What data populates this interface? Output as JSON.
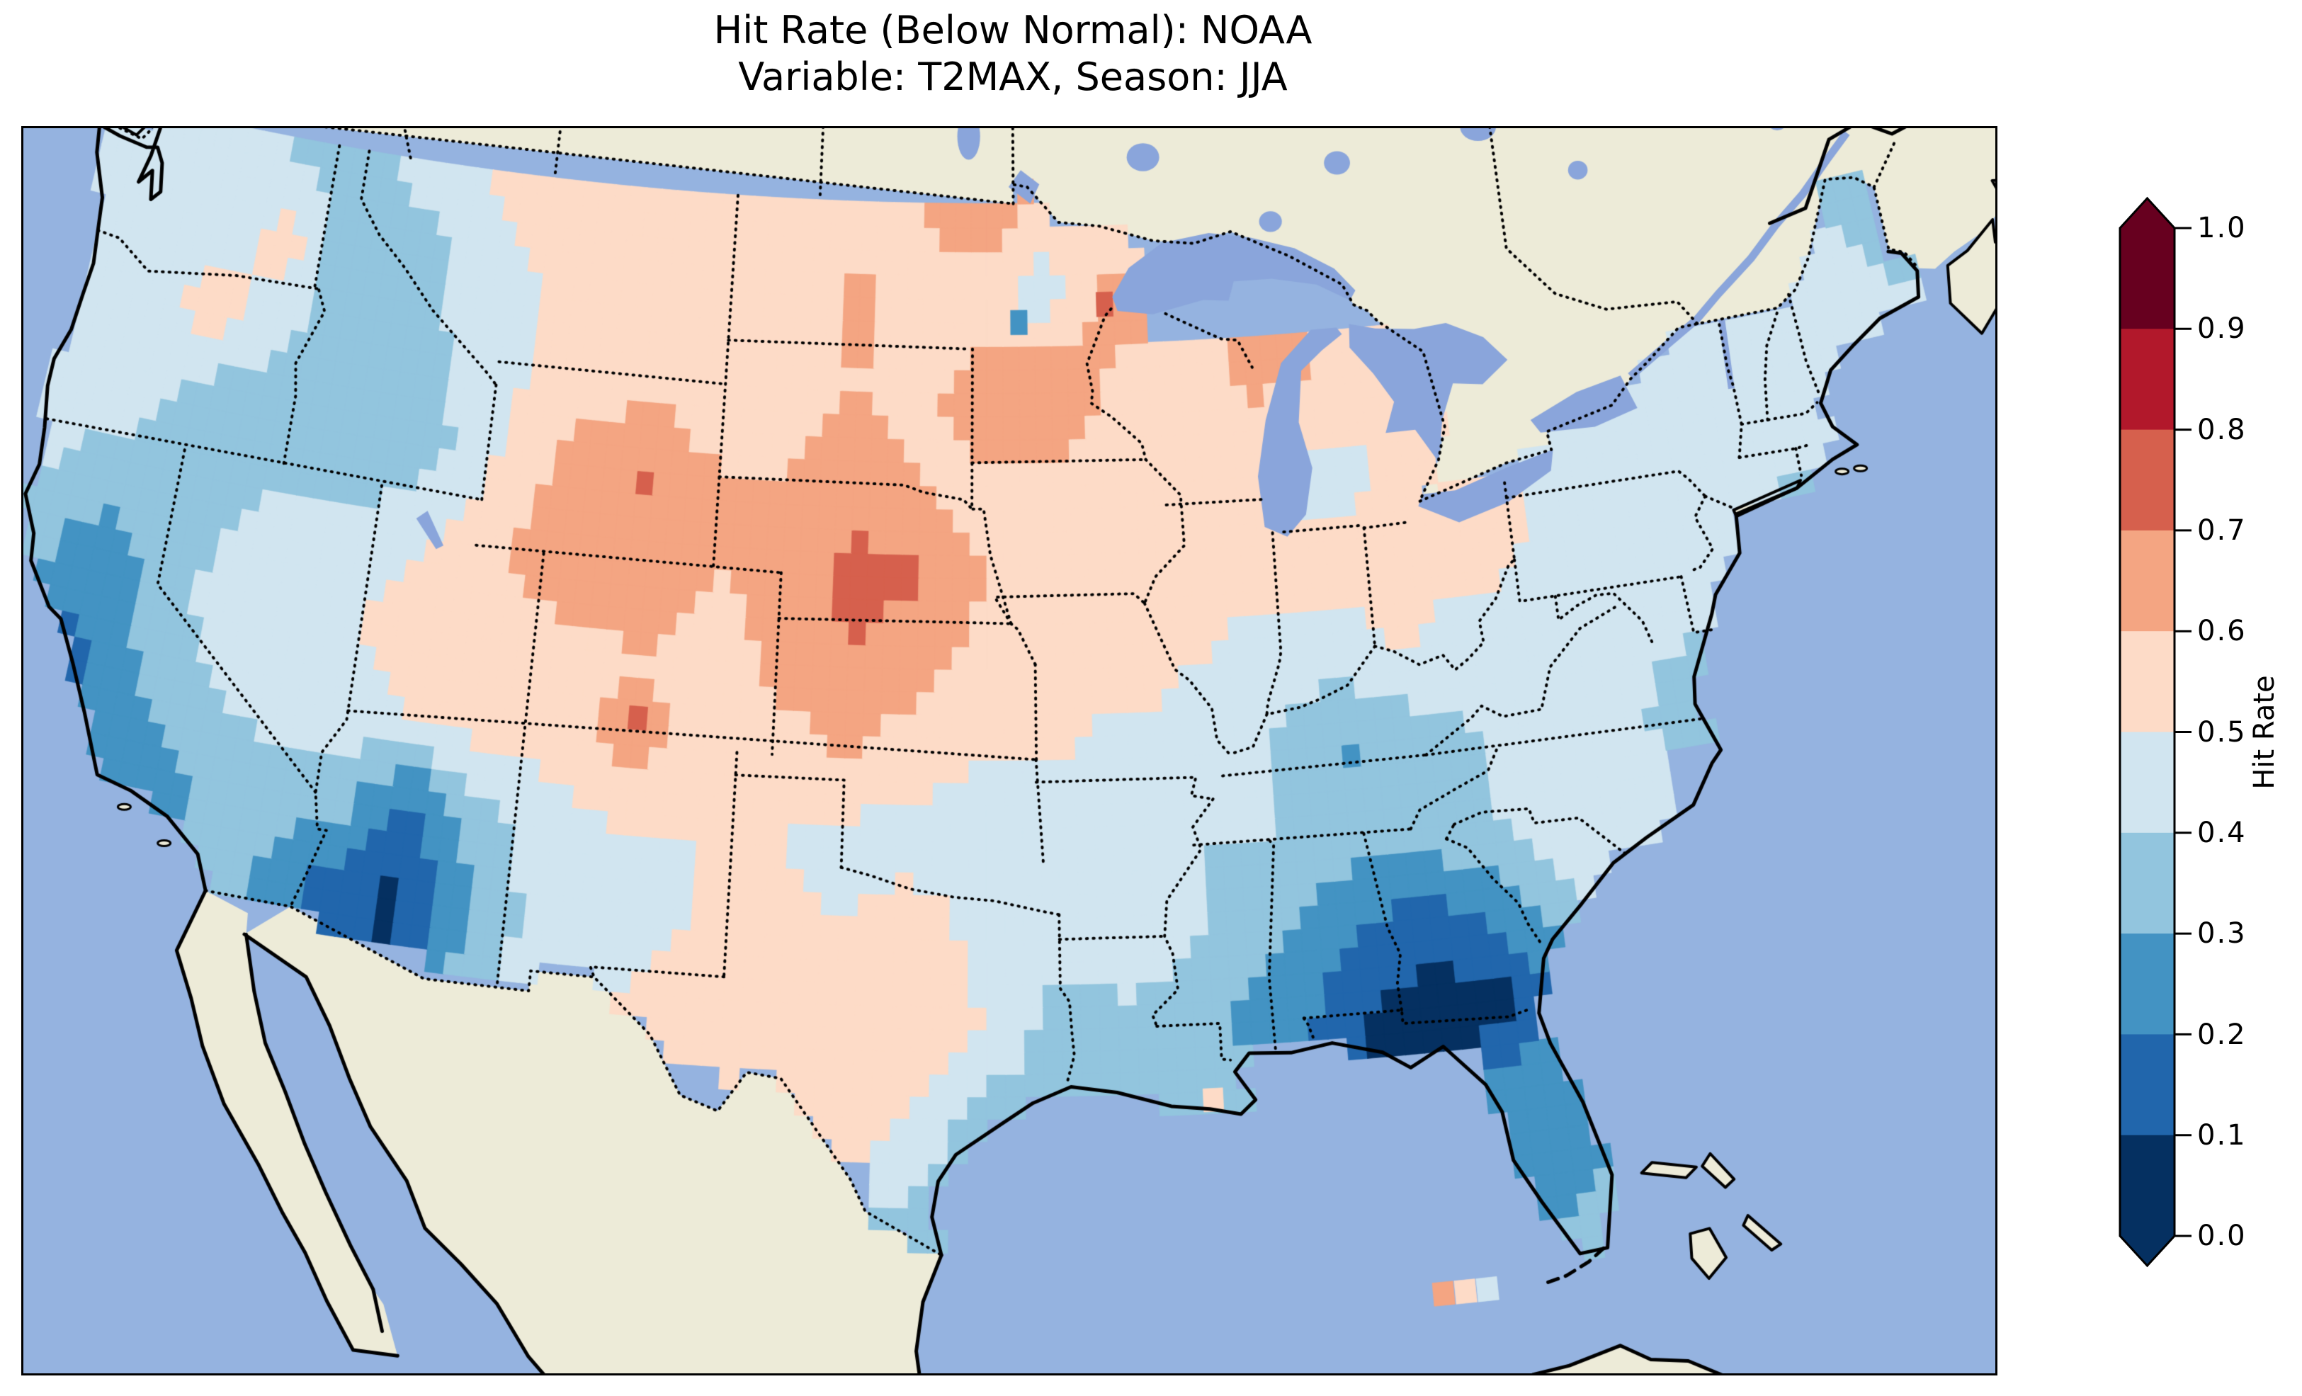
{
  "title": {
    "line1": "Hit Rate (Below Normal): NOAA",
    "line2": "Variable: T2MAX, Season: JJA"
  },
  "colorbar": {
    "label": "Hit Rate",
    "ticks": [
      "1.0",
      "0.9",
      "0.8",
      "0.7",
      "0.6",
      "0.5",
      "0.4",
      "0.3",
      "0.2",
      "0.1",
      "0.0"
    ],
    "bin_edges": [
      0.0,
      0.1,
      0.2,
      0.3,
      0.4,
      0.5,
      0.6,
      0.7,
      0.8,
      0.9,
      1.0
    ],
    "colors": [
      "#053061",
      "#2166ac",
      "#4393c3",
      "#92c5de",
      "#d1e5f0",
      "#fddbc7",
      "#f4a582",
      "#d6604d",
      "#b2182b",
      "#67001f"
    ],
    "extend": "both"
  },
  "map_colors": {
    "ocean": "#95b3e0",
    "land": "#edebd8",
    "lakes": "#8aa5db",
    "coastline": "#000000",
    "borders": "#000000"
  },
  "chart_data": {
    "type": "heatmap",
    "title": "Hit Rate (Below Normal): NOAA\nVariable: T2MAX, Season: JJA",
    "metric": "Hit Rate (Below Normal)",
    "source": "NOAA",
    "variable": "T2MAX",
    "season": "JJA",
    "value_range": [
      0.0,
      1.0
    ],
    "legend_label": "Hit Rate",
    "region": "CONUS",
    "grid": {
      "comment": "Estimated hit-rate field sampled on a 2-degree lon/lat grid, read from map colors; null = outside data region",
      "lon_start": -124,
      "lon_step": 2,
      "lat_start": 49,
      "lat_step": -2,
      "values": [
        [
          0.45,
          0.45,
          0.45,
          0.35,
          0.35,
          0.45,
          0.5,
          0.55,
          0.55,
          0.5,
          0.55,
          0.55,
          0.55,
          0.6,
          0.72,
          0.55,
          0.45,
          null,
          null,
          null,
          null,
          null,
          null,
          null,
          null,
          null,
          null,
          null,
          null
        ],
        [
          0.45,
          0.4,
          0.45,
          0.55,
          0.3,
          0.35,
          0.45,
          0.5,
          0.55,
          0.55,
          0.55,
          0.55,
          0.62,
          0.55,
          0.5,
          0.45,
          0.68,
          null,
          null,
          null,
          null,
          null,
          null,
          null,
          null,
          null,
          null,
          0.4,
          0.35
        ],
        [
          0.45,
          0.45,
          0.55,
          0.45,
          0.3,
          0.3,
          0.45,
          0.5,
          0.55,
          0.55,
          0.5,
          0.55,
          0.6,
          0.55,
          0.7,
          0.72,
          0.55,
          0.55,
          0.62,
          0.6,
          0.55,
          null,
          null,
          null,
          0.45,
          0.5,
          0.5,
          0.45,
          0.4
        ],
        [
          0.45,
          0.45,
          0.35,
          0.3,
          0.3,
          0.3,
          0.4,
          0.55,
          0.65,
          0.72,
          0.6,
          0.6,
          0.68,
          0.6,
          0.55,
          0.55,
          0.5,
          0.55,
          0.5,
          0.45,
          0.5,
          0.5,
          0.5,
          0.45,
          0.45,
          0.45,
          0.45,
          0.45,
          null
        ],
        [
          0.4,
          0.35,
          0.3,
          0.4,
          0.45,
          0.45,
          0.5,
          0.6,
          0.7,
          0.65,
          0.6,
          0.62,
          0.72,
          0.72,
          0.6,
          0.55,
          0.55,
          0.55,
          0.55,
          0.55,
          0.55,
          0.55,
          0.5,
          0.5,
          0.45,
          0.45,
          0.38,
          null,
          null
        ],
        [
          0.35,
          0.2,
          0.35,
          0.45,
          0.5,
          0.5,
          0.55,
          0.55,
          0.55,
          0.6,
          0.55,
          0.62,
          0.7,
          0.62,
          0.55,
          0.55,
          0.55,
          0.5,
          0.45,
          0.45,
          0.5,
          0.45,
          0.45,
          0.45,
          0.45,
          0.4,
          null,
          null,
          null
        ],
        [
          null,
          0.18,
          0.3,
          0.4,
          0.45,
          0.45,
          0.5,
          0.55,
          0.55,
          0.65,
          0.55,
          0.55,
          0.6,
          0.55,
          0.5,
          0.5,
          0.45,
          0.45,
          0.4,
          0.28,
          0.35,
          0.4,
          0.45,
          0.45,
          0.3,
          null,
          null,
          null,
          null
        ],
        [
          null,
          null,
          0.25,
          0.3,
          0.35,
          0.35,
          0.15,
          0.35,
          0.45,
          0.5,
          0.5,
          0.5,
          0.45,
          0.45,
          0.4,
          0.5,
          0.5,
          0.4,
          0.4,
          0.35,
          0.35,
          0.4,
          0.5,
          0.45,
          null,
          null,
          null,
          null,
          null
        ],
        [
          null,
          null,
          null,
          0.3,
          0.3,
          0.15,
          0.08,
          0.3,
          0.45,
          0.45,
          0.5,
          0.55,
          0.5,
          0.6,
          0.45,
          0.45,
          0.5,
          0.4,
          0.3,
          0.2,
          0.15,
          0.25,
          0.4,
          null,
          null,
          null,
          null,
          null,
          null
        ],
        [
          null,
          null,
          null,
          null,
          null,
          null,
          null,
          0.35,
          0.45,
          0.5,
          0.55,
          0.55,
          0.55,
          0.6,
          0.5,
          0.35,
          0.35,
          0.3,
          0.25,
          0.1,
          0.05,
          0.08,
          0.3,
          null,
          null,
          null,
          null,
          null,
          null
        ],
        [
          null,
          null,
          null,
          null,
          null,
          null,
          null,
          null,
          null,
          null,
          null,
          0.5,
          0.55,
          0.5,
          0.35,
          0.3,
          0.3,
          0.35,
          null,
          null,
          null,
          0.25,
          0.3,
          null,
          null,
          null,
          null,
          null,
          null
        ],
        [
          null,
          null,
          null,
          null,
          null,
          null,
          null,
          null,
          null,
          null,
          null,
          null,
          null,
          0.4,
          0.3,
          null,
          null,
          null,
          null,
          null,
          null,
          0.25,
          0.3,
          null,
          null,
          null,
          null,
          null,
          null
        ],
        [
          null,
          null,
          null,
          null,
          null,
          null,
          null,
          null,
          null,
          null,
          null,
          null,
          null,
          0.3,
          null,
          null,
          null,
          null,
          null,
          null,
          null,
          0.35,
          0.35,
          null,
          null,
          null,
          null,
          null,
          null
        ]
      ]
    },
    "isolated_cells": [
      {
        "lon": -92.3,
        "lat": 46.85,
        "value": 0.72
      },
      {
        "lon": -105.9,
        "lat": 37.6,
        "value": 0.72
      },
      {
        "lon": -95.0,
        "lat": 46.5,
        "value": 0.28
      },
      {
        "lon": -90.1,
        "lat": 29.3,
        "value": 0.55
      },
      {
        "lon": -84.6,
        "lat": 24.6,
        "value": 0.65
      },
      {
        "lon": -84.05,
        "lat": 24.6,
        "value": 0.55
      },
      {
        "lon": -83.5,
        "lat": 24.6,
        "value": 0.45
      }
    ]
  }
}
